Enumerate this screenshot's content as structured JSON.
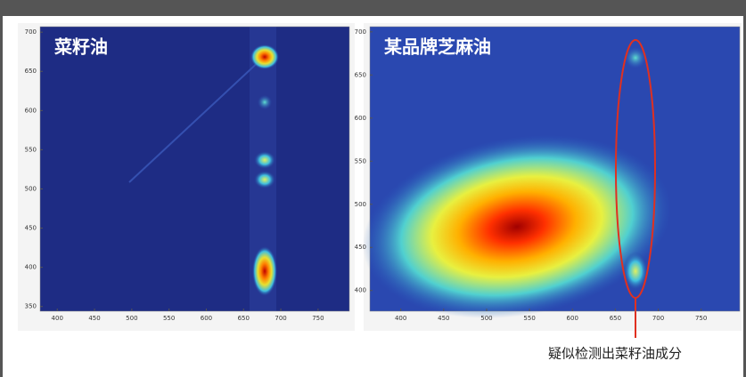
{
  "chart_data": [
    {
      "type": "heatmap",
      "title": "菜籽油",
      "xlim": [
        377,
        792
      ],
      "ylim": [
        344,
        707
      ],
      "xticks": [
        400,
        450,
        500,
        550,
        600,
        650,
        700,
        750
      ],
      "yticks": [
        350,
        400,
        450,
        500,
        550,
        600,
        650,
        700
      ]
    },
    {
      "type": "heatmap",
      "title": "某品牌芝麻油",
      "xlim": [
        364,
        795
      ],
      "ylim": [
        376,
        706
      ],
      "xticks": [
        400,
        450,
        500,
        550,
        600,
        650,
        700,
        750
      ],
      "yticks": [
        400,
        450,
        500,
        550,
        600,
        650,
        700
      ],
      "annotation": "疑似检测出菜籽油成分"
    }
  ]
}
